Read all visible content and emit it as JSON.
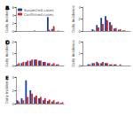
{
  "chart_data": [
    {
      "type": "bar",
      "title": "A",
      "ylabel": "Daily incidence",
      "categories": [
        null,
        null,
        null,
        null,
        null,
        null,
        null,
        null,
        null,
        null,
        null
      ],
      "series": [
        {
          "name": "Suspected cases",
          "color": "#243f8f",
          "values": [
            0,
            0,
            0,
            0,
            0.1,
            0,
            0,
            3.5,
            0.5,
            0,
            0
          ]
        },
        {
          "name": "Confirmed cases",
          "color": "#d2232a",
          "values": [
            0,
            0,
            0,
            0,
            0,
            0,
            0,
            0.3,
            1.2,
            0.1,
            0
          ]
        }
      ],
      "ylim": [
        0,
        6
      ],
      "yticks": [
        0,
        2,
        4,
        6
      ],
      "legend": "top-left",
      "tick_labels": "y"
    },
    {
      "type": "bar",
      "title": "B",
      "ylabel": "Daily incidence",
      "categories": [
        null,
        null,
        null,
        null,
        null,
        null,
        null,
        null,
        null,
        null,
        null
      ],
      "series": [
        {
          "name": "Suspected cases",
          "color": "#243f8f",
          "values": [
            0,
            0,
            0.3,
            1,
            2.2,
            2.5,
            1.5,
            0.4,
            0.2,
            0.1,
            0
          ]
        },
        {
          "name": "Confirmed cases",
          "color": "#d2232a",
          "values": [
            0,
            0,
            0.1,
            0.6,
            1.2,
            1.8,
            1,
            0.5,
            0.3,
            0.1,
            0
          ]
        }
      ],
      "ylim": [
        0,
        4
      ],
      "yticks": [
        0,
        2,
        4
      ],
      "tick_labels": "y"
    },
    {
      "type": "bar",
      "title": "C",
      "ylabel": "Daily incidence",
      "categories": [
        null,
        null,
        null,
        null,
        null,
        null,
        null,
        null,
        null,
        null,
        null
      ],
      "series": [
        {
          "name": "Suspected cases",
          "color": "#243f8f",
          "values": [
            0.1,
            0.2,
            0.3,
            0.4,
            0.5,
            0.4,
            0.3,
            0.2,
            0.1,
            0.1,
            0
          ]
        },
        {
          "name": "Confirmed cases",
          "color": "#d2232a",
          "values": [
            0.2,
            0.3,
            0.4,
            0.5,
            0.5,
            0.4,
            0.3,
            0.2,
            0.2,
            0.1,
            0
          ]
        }
      ],
      "ylim": [
        0,
        2
      ],
      "yticks": [
        0,
        1,
        2
      ],
      "tick_labels": "y"
    },
    {
      "type": "bar",
      "title": "D",
      "ylabel": "Daily incidence",
      "categories": [
        null,
        null,
        null,
        null,
        null,
        null,
        null,
        null,
        null,
        null,
        null
      ],
      "series": [
        {
          "name": "Suspected cases",
          "color": "#243f8f",
          "values": [
            0,
            0.1,
            0.2,
            0.3,
            0.2,
            0.2,
            0.1,
            0.1,
            0,
            0,
            0
          ]
        },
        {
          "name": "Confirmed cases",
          "color": "#d2232a",
          "values": [
            0,
            0.1,
            0.2,
            0.2,
            0.3,
            0.2,
            0.1,
            0.1,
            0.1,
            0,
            0
          ]
        }
      ],
      "ylim": [
        0,
        2
      ],
      "yticks": [
        0,
        1,
        2
      ],
      "tick_labels": "y"
    },
    {
      "type": "bar",
      "title": "E",
      "ylabel": "Daily incidence",
      "categories": [
        null,
        null,
        null,
        null,
        null,
        null,
        null,
        null,
        null,
        null,
        null
      ],
      "series": [
        {
          "name": "Suspected cases",
          "color": "#243f8f",
          "values": [
            0.5,
            0.8,
            3.5,
            2,
            1,
            0.8,
            0.5,
            0.4,
            0.3,
            0.2,
            0.1
          ]
        },
        {
          "name": "Confirmed cases",
          "color": "#d2232a",
          "values": [
            0.3,
            0.5,
            1,
            1.5,
            1.2,
            1,
            0.8,
            0.6,
            0.5,
            0.3,
            0.2
          ]
        }
      ],
      "ylim": [
        0,
        4
      ],
      "yticks": [
        0,
        2,
        4
      ],
      "tick_labels": "y"
    }
  ]
}
